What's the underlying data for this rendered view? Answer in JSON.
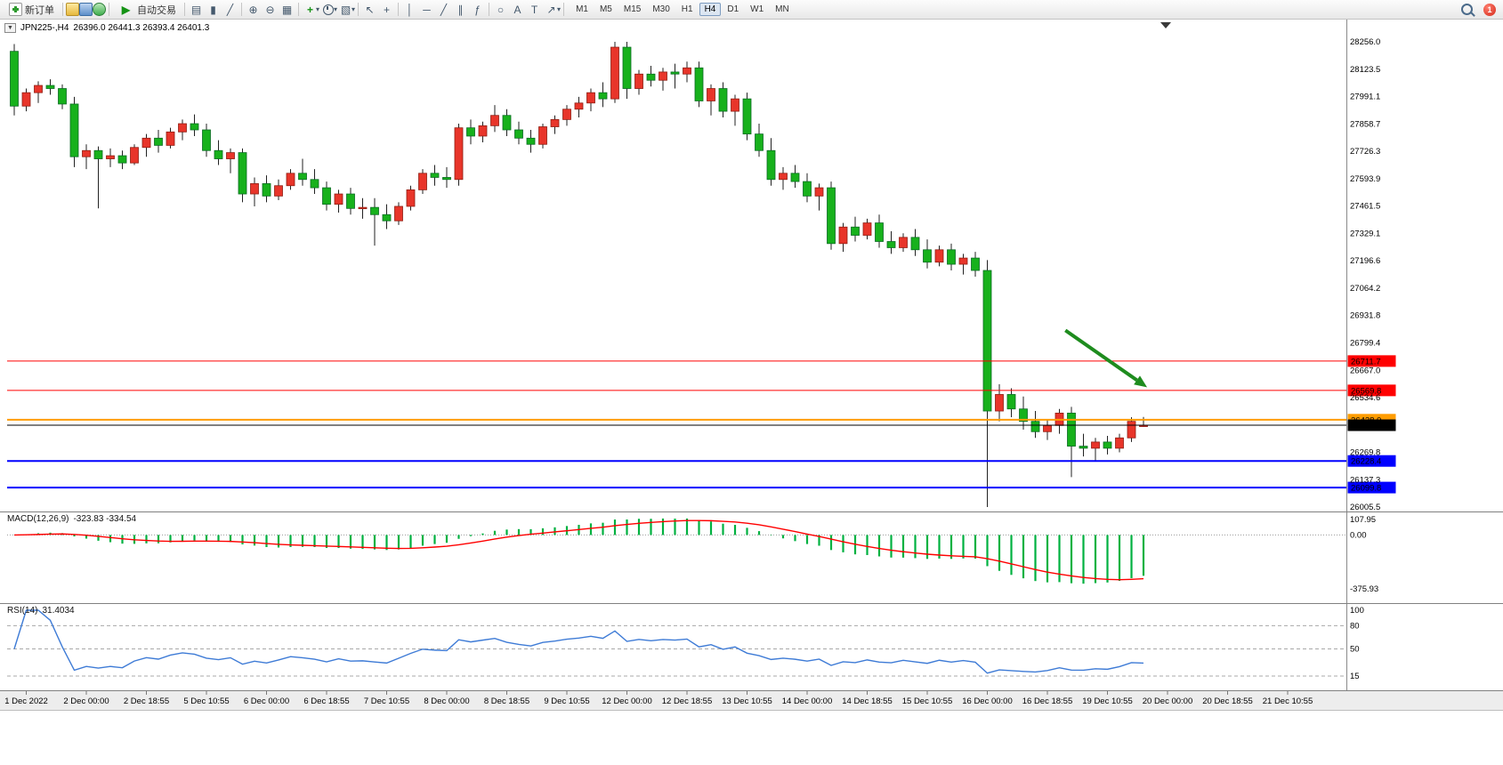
{
  "toolbar": {
    "new_order": "新订单",
    "autotrading": "自动交易",
    "timeframes": [
      "M1",
      "M5",
      "M15",
      "M30",
      "H1",
      "H4",
      "D1",
      "W1",
      "MN"
    ],
    "active_timeframe": "H4",
    "notification_badge": "1",
    "glyphs": {
      "autotrading_play": "▶",
      "bar_chart": "▤",
      "candle_chart": "▮",
      "line_chart": "╱",
      "zoom_in": "⊕",
      "zoom_out": "⊖",
      "tile_windows": "▦",
      "add_indicator": "+",
      "caret": "▾",
      "cursor": "↖",
      "crosshair": "+",
      "vertical_line": "│",
      "horizontal_line": "─",
      "trendline": "╱",
      "channel": "∥",
      "fibonacci": "ƒ",
      "shapes": "○",
      "text": "A",
      "text_label": "T",
      "arrow_tool": "↗",
      "template": "▧"
    }
  },
  "chart": {
    "one_click_glyph": "▼",
    "symbol_title": "JPN225-,H4",
    "ohlc_text": "26396.0 26441.3 26393.4 26401.3",
    "macd_title": "MACD(12,26,9)",
    "macd_values": "-323.83 -334.54",
    "rsi_title": "RSI(14)",
    "rsi_value": "31.4034"
  },
  "chart_data": [
    {
      "type": "candlestick",
      "symbol": "JPN225-",
      "timeframe": "H4",
      "current_ohlc": {
        "open": 26396.0,
        "high": 26441.3,
        "low": 26393.4,
        "close": 26401.3
      },
      "y_axis": {
        "min": 26005.5,
        "max": 28256.0,
        "ticks": [
          28256.0,
          28123.5,
          27991.1,
          27858.7,
          27726.3,
          27593.9,
          27461.5,
          27329.1,
          27196.6,
          27064.2,
          26931.8,
          26799.4,
          26667.0,
          26534.6,
          26269.8,
          26137.3,
          26005.5
        ]
      },
      "x_labels": [
        "1 Dec 2022",
        "2 Dec 00:00",
        "2 Dec 18:55",
        "5 Dec 10:55",
        "6 Dec 00:00",
        "6 Dec 18:55",
        "7 Dec 10:55",
        "8 Dec 00:00",
        "8 Dec 18:55",
        "9 Dec 10:55",
        "12 Dec 00:00",
        "12 Dec 18:55",
        "13 Dec 10:55",
        "14 Dec 00:00",
        "14 Dec 18:55",
        "15 Dec 10:55",
        "16 Dec 00:00",
        "16 Dec 18:55",
        "19 Dec 10:55",
        "20 Dec 00:00",
        "20 Dec 18:55",
        "21 Dec 10:55"
      ],
      "ohlc": [
        [
          28210,
          28245,
          27900,
          27945
        ],
        [
          27945,
          28030,
          27920,
          28010
        ],
        [
          28010,
          28065,
          27960,
          28045
        ],
        [
          28045,
          28075,
          28000,
          28030
        ],
        [
          28030,
          28050,
          27930,
          27955
        ],
        [
          27955,
          27990,
          27650,
          27700
        ],
        [
          27700,
          27760,
          27640,
          27730
        ],
        [
          27730,
          27750,
          27450,
          27690
        ],
        [
          27690,
          27740,
          27650,
          27705
        ],
        [
          27705,
          27730,
          27640,
          27670
        ],
        [
          27670,
          27760,
          27660,
          27745
        ],
        [
          27745,
          27810,
          27700,
          27790
        ],
        [
          27790,
          27830,
          27720,
          27755
        ],
        [
          27755,
          27840,
          27740,
          27820
        ],
        [
          27820,
          27880,
          27780,
          27860
        ],
        [
          27860,
          27905,
          27800,
          27830
        ],
        [
          27830,
          27860,
          27700,
          27730
        ],
        [
          27730,
          27780,
          27660,
          27690
        ],
        [
          27690,
          27740,
          27620,
          27720
        ],
        [
          27720,
          27740,
          27480,
          27520
        ],
        [
          27520,
          27600,
          27460,
          27570
        ],
        [
          27570,
          27610,
          27480,
          27510
        ],
        [
          27510,
          27590,
          27490,
          27560
        ],
        [
          27560,
          27640,
          27540,
          27620
        ],
        [
          27620,
          27690,
          27560,
          27590
        ],
        [
          27590,
          27640,
          27520,
          27550
        ],
        [
          27550,
          27580,
          27440,
          27470
        ],
        [
          27470,
          27540,
          27430,
          27520
        ],
        [
          27520,
          27550,
          27420,
          27450
        ],
        [
          27450,
          27500,
          27400,
          27455
        ],
        [
          27455,
          27500,
          27270,
          27420
        ],
        [
          27420,
          27470,
          27350,
          27390
        ],
        [
          27390,
          27480,
          27370,
          27460
        ],
        [
          27460,
          27560,
          27440,
          27540
        ],
        [
          27540,
          27640,
          27520,
          27620
        ],
        [
          27620,
          27660,
          27560,
          27600
        ],
        [
          27600,
          27650,
          27550,
          27590
        ],
        [
          27590,
          27860,
          27560,
          27840
        ],
        [
          27840,
          27880,
          27760,
          27800
        ],
        [
          27800,
          27870,
          27770,
          27850
        ],
        [
          27850,
          27950,
          27820,
          27900
        ],
        [
          27900,
          27930,
          27800,
          27830
        ],
        [
          27830,
          27870,
          27760,
          27790
        ],
        [
          27790,
          27830,
          27720,
          27760
        ],
        [
          27760,
          27860,
          27740,
          27845
        ],
        [
          27845,
          27900,
          27810,
          27880
        ],
        [
          27880,
          27950,
          27850,
          27930
        ],
        [
          27930,
          27990,
          27890,
          27960
        ],
        [
          27960,
          28030,
          27920,
          28010
        ],
        [
          28010,
          28060,
          27940,
          27980
        ],
        [
          27980,
          28256,
          27960,
          28230
        ],
        [
          28230,
          28256,
          27980,
          28030
        ],
        [
          28030,
          28120,
          28000,
          28100
        ],
        [
          28100,
          28140,
          28040,
          28070
        ],
        [
          28070,
          28130,
          28020,
          28110
        ],
        [
          28110,
          28150,
          28030,
          28100
        ],
        [
          28100,
          28160,
          28060,
          28130
        ],
        [
          28130,
          28160,
          27940,
          27970
        ],
        [
          27970,
          28050,
          27900,
          28030
        ],
        [
          28030,
          28060,
          27890,
          27920
        ],
        [
          27920,
          28000,
          27850,
          27980
        ],
        [
          27980,
          28010,
          27780,
          27810
        ],
        [
          27810,
          27860,
          27700,
          27730
        ],
        [
          27730,
          27790,
          27560,
          27590
        ],
        [
          27590,
          27650,
          27540,
          27620
        ],
        [
          27620,
          27660,
          27550,
          27580
        ],
        [
          27580,
          27620,
          27480,
          27510
        ],
        [
          27510,
          27570,
          27440,
          27550
        ],
        [
          27550,
          27580,
          27250,
          27280
        ],
        [
          27280,
          27380,
          27240,
          27360
        ],
        [
          27360,
          27410,
          27290,
          27320
        ],
        [
          27320,
          27400,
          27300,
          27380
        ],
        [
          27380,
          27420,
          27260,
          27290
        ],
        [
          27290,
          27340,
          27230,
          27260
        ],
        [
          27260,
          27330,
          27240,
          27310
        ],
        [
          27310,
          27350,
          27220,
          27250
        ],
        [
          27250,
          27300,
          27160,
          27190
        ],
        [
          27190,
          27270,
          27170,
          27250
        ],
        [
          27250,
          27280,
          27150,
          27180
        ],
        [
          27180,
          27230,
          27130,
          27210
        ],
        [
          27210,
          27240,
          27120,
          27150
        ],
        [
          27150,
          27200,
          26005.5,
          26470
        ],
        [
          26470,
          26600,
          26420,
          26550
        ],
        [
          26550,
          26580,
          26440,
          26480
        ],
        [
          26480,
          26540,
          26380,
          26420
        ],
        [
          26420,
          26470,
          26340,
          26370
        ],
        [
          26370,
          26430,
          26330,
          26400
        ],
        [
          26400,
          26480,
          26360,
          26460
        ],
        [
          26460,
          26490,
          26150,
          26300
        ],
        [
          26300,
          26360,
          26250,
          26290
        ],
        [
          26290,
          26340,
          26230,
          26320
        ],
        [
          26320,
          26350,
          26260,
          26290
        ],
        [
          26290,
          26360,
          26270,
          26340
        ],
        [
          26340,
          26440,
          26320,
          26420
        ],
        [
          26396,
          26441.3,
          26393.4,
          26401.3
        ]
      ],
      "price_lines": [
        {
          "price": 26711.7,
          "label": "26711.7",
          "color": "#ff0000",
          "width": 1,
          "kind": "resistance"
        },
        {
          "price": 26569.8,
          "label": "26569.8",
          "color": "#ff0000",
          "width": 1,
          "kind": "resistance"
        },
        {
          "price": 26428.0,
          "label": "26428.0",
          "color": "#ff9c00",
          "width": 2,
          "kind": "level"
        },
        {
          "price": 26228.4,
          "label": "26228.4",
          "color": "#0000ff",
          "width": 2,
          "kind": "support"
        },
        {
          "price": 26099.8,
          "label": "26099.8",
          "color": "#0000ff",
          "width": 2,
          "kind": "support"
        },
        {
          "price": 26401.3,
          "label": "26401.3",
          "color": "#000000",
          "width": 1,
          "kind": "bid"
        }
      ],
      "arrow": {
        "from_bar": 87.5,
        "from_price": 26860,
        "to_bar": 94.3,
        "to_price": 26585,
        "color": "#1e8c1e"
      },
      "colors": {
        "bull": "#e8352a",
        "bull_border": "#8f1d12",
        "bear": "#17b11c",
        "bear_border": "#0b6b23",
        "wick": "#222222"
      }
    },
    {
      "type": "macd",
      "params": "12,26,9",
      "value_main": -323.83,
      "value_signal": -334.54,
      "max": 107.95,
      "min": -375.93,
      "tick_labels": [
        "107.95",
        "0.00",
        "-375.93"
      ],
      "colors": {
        "histogram": "#00b140",
        "signal": "#ff0000"
      }
    },
    {
      "type": "rsi",
      "period": 14,
      "value": 31.4034,
      "ticks": [
        100,
        80,
        50,
        15
      ],
      "levels": [
        80,
        50,
        15
      ],
      "color": "#3e7bd6"
    }
  ]
}
